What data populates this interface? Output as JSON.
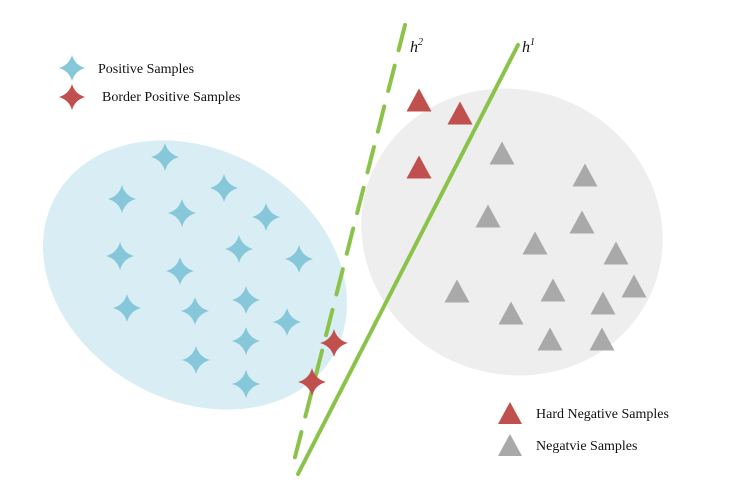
{
  "colors": {
    "positive_region": "#d9edf4",
    "negative_region": "#eeeeee",
    "positive_sample": "#86c7da",
    "border_positive_sample": "#c0504d",
    "hard_negative_sample": "#c0504d",
    "negative_sample": "#a9a9a9",
    "boundary_line": "#8bc34a"
  },
  "legend": {
    "positive": "Positive Samples",
    "border_positive": "Border Positive Samples",
    "hard_negative": "Hard  Negative Samples",
    "negative": "Negatvie Samples"
  },
  "lines": {
    "h1": {
      "label": "h",
      "sup": "1",
      "style": "solid"
    },
    "h2": {
      "label": "h",
      "sup": "2",
      "style": "dashed"
    }
  },
  "icons": {
    "positive": "four-point-star-icon",
    "negative": "triangle-icon"
  }
}
